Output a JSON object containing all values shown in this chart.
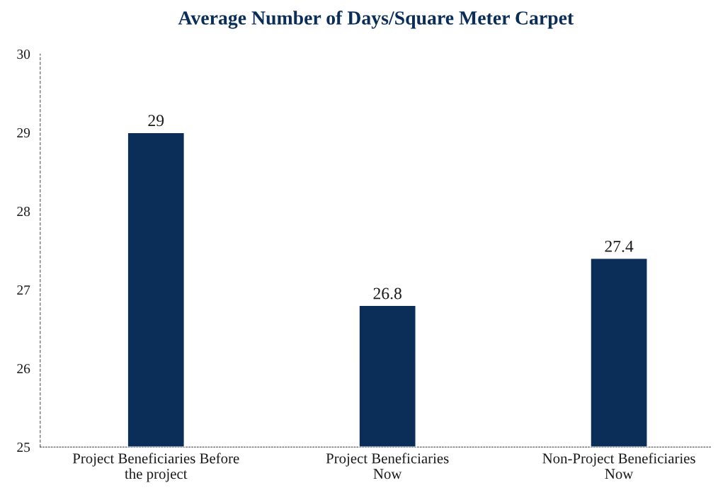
{
  "chart_data": {
    "type": "bar",
    "title": "Average Number of Days/Square Meter Carpet",
    "categories": [
      "Project Beneficiaries Before\nthe project",
      "Project Beneficiaries\nNow",
      "Non-Project Beneficiaries\nNow"
    ],
    "values": [
      29,
      26.8,
      27.4
    ],
    "color": "#0b2e59",
    "ylim": [
      25,
      30
    ],
    "yticks": [
      25,
      26,
      27,
      28,
      29,
      30
    ],
    "grid": false,
    "data_labels": true
  }
}
